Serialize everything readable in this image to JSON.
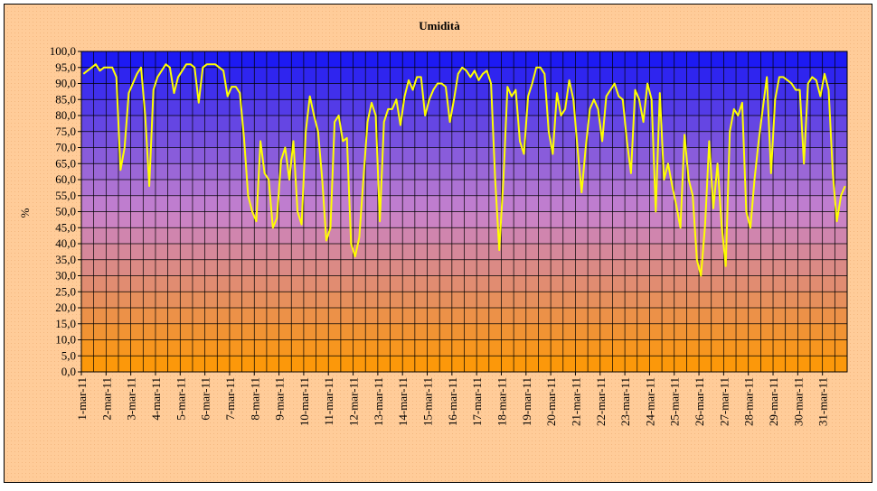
{
  "chart_data": {
    "type": "line",
    "title": "Umidità",
    "y_label": "%",
    "color": "#ffff00",
    "grid": true,
    "ylim": [
      0,
      100
    ],
    "yticks": [
      {
        "value": 0,
        "label": "0,0"
      },
      {
        "value": 5,
        "label": "5,0"
      },
      {
        "value": 10,
        "label": "10,0"
      },
      {
        "value": 15,
        "label": "15,0"
      },
      {
        "value": 20,
        "label": "20,0"
      },
      {
        "value": 25,
        "label": "25,0"
      },
      {
        "value": 30,
        "label": "30,0"
      },
      {
        "value": 35,
        "label": "35,0"
      },
      {
        "value": 40,
        "label": "40,0"
      },
      {
        "value": 45,
        "label": "45,0"
      },
      {
        "value": 50,
        "label": "50,0"
      },
      {
        "value": 55,
        "label": "55,0"
      },
      {
        "value": 60,
        "label": "60,0"
      },
      {
        "value": 65,
        "label": "65,0"
      },
      {
        "value": 70,
        "label": "70,0"
      },
      {
        "value": 75,
        "label": "75,0"
      },
      {
        "value": 80,
        "label": "80,0"
      },
      {
        "value": 85,
        "label": "85,0"
      },
      {
        "value": 90,
        "label": "90,0"
      },
      {
        "value": 95,
        "label": "95,0"
      },
      {
        "value": 100,
        "label": "100,0"
      }
    ],
    "categories": [
      "1-mar-11",
      null,
      null,
      null,
      null,
      null,
      "2-mar-11",
      null,
      null,
      null,
      null,
      null,
      "3-mar-11",
      null,
      null,
      null,
      null,
      null,
      "4-mar-11",
      null,
      null,
      null,
      null,
      null,
      "5-mar-11",
      null,
      null,
      null,
      null,
      null,
      "6-mar-11",
      null,
      null,
      null,
      null,
      null,
      "7-mar-11",
      null,
      null,
      null,
      null,
      null,
      "8-mar-11",
      null,
      null,
      null,
      null,
      null,
      "9-mar-11",
      null,
      null,
      null,
      null,
      null,
      "10-mar-11",
      null,
      null,
      null,
      null,
      null,
      "11-mar-11",
      null,
      null,
      null,
      null,
      null,
      "12-mar-11",
      null,
      null,
      null,
      null,
      null,
      "13-mar-11",
      null,
      null,
      null,
      null,
      null,
      "14-mar-11",
      null,
      null,
      null,
      null,
      null,
      "15-mar-11",
      null,
      null,
      null,
      null,
      null,
      "16-mar-11",
      null,
      null,
      null,
      null,
      null,
      "17-mar-11",
      null,
      null,
      null,
      null,
      null,
      "18-mar-11",
      null,
      null,
      null,
      null,
      null,
      "19-mar-11",
      null,
      null,
      null,
      null,
      null,
      "20-mar-11",
      null,
      null,
      null,
      null,
      null,
      "21-mar-11",
      null,
      null,
      null,
      null,
      null,
      "22-mar-11",
      null,
      null,
      null,
      null,
      null,
      "23-mar-11",
      null,
      null,
      null,
      null,
      null,
      "24-mar-11",
      null,
      null,
      null,
      null,
      null,
      "25-mar-11",
      null,
      null,
      null,
      null,
      null,
      "26-mar-11",
      null,
      null,
      null,
      null,
      null,
      "27-mar-11",
      null,
      null,
      null,
      null,
      null,
      "28-mar-11",
      null,
      null,
      null,
      null,
      null,
      "29-mar-11",
      null,
      null,
      null,
      null,
      null,
      "30-mar-11",
      null,
      null,
      null,
      null,
      null,
      "31-mar-11",
      null,
      null,
      null,
      null,
      null
    ],
    "values": [
      93,
      94,
      95,
      96,
      94,
      95,
      95,
      95,
      92,
      63,
      70,
      87,
      90,
      93,
      95,
      80,
      58,
      88,
      92,
      94,
      96,
      95,
      87,
      92,
      94,
      96,
      96,
      95,
      84,
      95,
      96,
      96,
      96,
      95,
      94,
      86,
      89,
      89,
      87,
      73,
      55,
      50,
      47,
      72,
      62,
      60,
      45,
      48,
      66,
      70,
      60,
      72,
      50,
      46,
      75,
      86,
      80,
      75,
      60,
      41,
      45,
      78,
      80,
      72,
      73,
      40,
      36,
      42,
      60,
      78,
      84,
      80,
      47,
      78,
      82,
      82,
      85,
      77,
      86,
      91,
      88,
      92,
      92,
      80,
      85,
      88,
      90,
      90,
      89,
      78,
      85,
      93,
      95,
      94,
      92,
      94,
      91,
      93,
      94,
      90,
      60,
      38,
      60,
      89,
      86,
      88,
      72,
      68,
      86,
      90,
      95,
      95,
      93,
      75,
      68,
      87,
      80,
      82,
      91,
      85,
      70,
      56,
      70,
      82,
      85,
      82,
      72,
      86,
      88,
      90,
      86,
      85,
      72,
      62,
      88,
      85,
      78,
      90,
      85,
      50,
      87,
      60,
      65,
      58,
      52,
      45,
      74,
      60,
      55,
      35,
      30,
      46,
      72,
      51,
      65,
      46,
      33,
      75,
      82,
      80,
      84,
      50,
      45,
      60,
      72,
      82,
      92,
      62,
      85,
      92,
      92,
      91,
      90,
      88,
      88,
      65,
      90,
      92,
      91,
      86,
      93,
      88,
      62,
      47,
      55,
      58
    ]
  }
}
